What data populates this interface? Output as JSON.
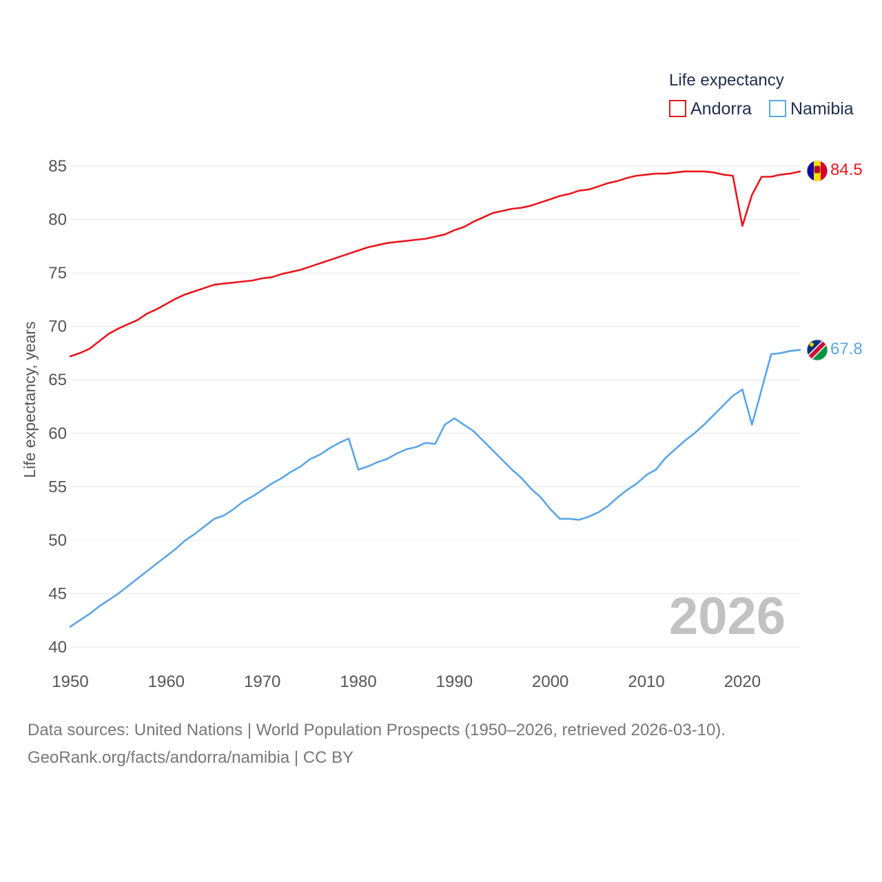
{
  "chart_data": {
    "type": "line",
    "title": "",
    "legend_title": "Life expectancy",
    "legend_position": "top-right",
    "xlabel": "",
    "ylabel": "Life expectancy, years",
    "xlim": [
      1950,
      2026
    ],
    "ylim": [
      40,
      85
    ],
    "xticks": [
      "1950",
      "1960",
      "1970",
      "1980",
      "1990",
      "2000",
      "2010",
      "2020"
    ],
    "yticks": [
      "85",
      "80",
      "75",
      "70",
      "65",
      "60",
      "55",
      "50",
      "45",
      "40"
    ],
    "grid": true,
    "annotation_year": "2026",
    "x": [
      1950,
      1951,
      1952,
      1953,
      1954,
      1955,
      1956,
      1957,
      1958,
      1959,
      1960,
      1961,
      1962,
      1963,
      1964,
      1965,
      1966,
      1967,
      1968,
      1969,
      1970,
      1971,
      1972,
      1973,
      1974,
      1975,
      1976,
      1977,
      1978,
      1979,
      1980,
      1981,
      1982,
      1983,
      1984,
      1985,
      1986,
      1987,
      1988,
      1989,
      1990,
      1991,
      1992,
      1993,
      1994,
      1995,
      1996,
      1997,
      1998,
      1999,
      2000,
      2001,
      2002,
      2003,
      2004,
      2005,
      2006,
      2007,
      2008,
      2009,
      2010,
      2011,
      2012,
      2013,
      2014,
      2015,
      2016,
      2017,
      2018,
      2019,
      2020,
      2021,
      2022,
      2023,
      2024,
      2025,
      2026
    ],
    "series": [
      {
        "name": "Andorra",
        "color": "#e8161b",
        "end_label": "84.5",
        "flag_icon": "andorra-flag-icon",
        "values": [
          67.2,
          67.5,
          67.9,
          68.6,
          69.3,
          69.8,
          70.2,
          70.6,
          71.2,
          71.6,
          72.1,
          72.6,
          73.0,
          73.3,
          73.6,
          73.9,
          74.0,
          74.1,
          74.2,
          74.3,
          74.5,
          74.6,
          74.9,
          75.1,
          75.3,
          75.6,
          75.9,
          76.2,
          76.5,
          76.8,
          77.1,
          77.4,
          77.6,
          77.8,
          77.9,
          78.0,
          78.1,
          78.2,
          78.4,
          78.6,
          79.0,
          79.3,
          79.8,
          80.2,
          80.6,
          80.8,
          81.0,
          81.1,
          81.3,
          81.6,
          81.9,
          82.2,
          82.4,
          82.7,
          82.8,
          83.1,
          83.4,
          83.6,
          83.9,
          84.1,
          84.2,
          84.3,
          84.3,
          84.4,
          84.5,
          84.5,
          84.5,
          84.4,
          84.2,
          84.1,
          79.4,
          82.3,
          84.0,
          84.0,
          84.2,
          84.3,
          84.5
        ]
      },
      {
        "name": "Namibia",
        "color": "#5aa5e6",
        "end_label": "67.8",
        "flag_icon": "namibia-flag-icon",
        "values": [
          41.9,
          42.5,
          43.1,
          43.8,
          44.4,
          45.0,
          45.7,
          46.4,
          47.1,
          47.8,
          48.5,
          49.2,
          50.0,
          50.6,
          51.3,
          52.0,
          52.3,
          52.9,
          53.6,
          54.1,
          54.7,
          55.3,
          55.8,
          56.4,
          56.9,
          57.6,
          58.0,
          58.6,
          59.1,
          59.5,
          56.6,
          56.9,
          57.3,
          57.6,
          58.1,
          58.5,
          58.7,
          59.1,
          59.0,
          60.8,
          61.4,
          60.8,
          60.2,
          59.3,
          58.4,
          57.5,
          56.6,
          55.8,
          54.8,
          54.0,
          52.9,
          52.0,
          52.0,
          51.9,
          52.2,
          52.6,
          53.2,
          54.0,
          54.7,
          55.3,
          56.1,
          56.6,
          57.7,
          58.5,
          59.3,
          60.0,
          60.8,
          61.7,
          62.6,
          63.5,
          64.1,
          60.8,
          64.1,
          67.4,
          67.5,
          67.7,
          67.8
        ]
      }
    ]
  },
  "footer": {
    "sources": "Data sources: United Nations | World Population Prospects (1950–2026, retrieved 2026-03-10).",
    "credit": "GeoRank.org/facts/andorra/namibia | CC BY"
  }
}
